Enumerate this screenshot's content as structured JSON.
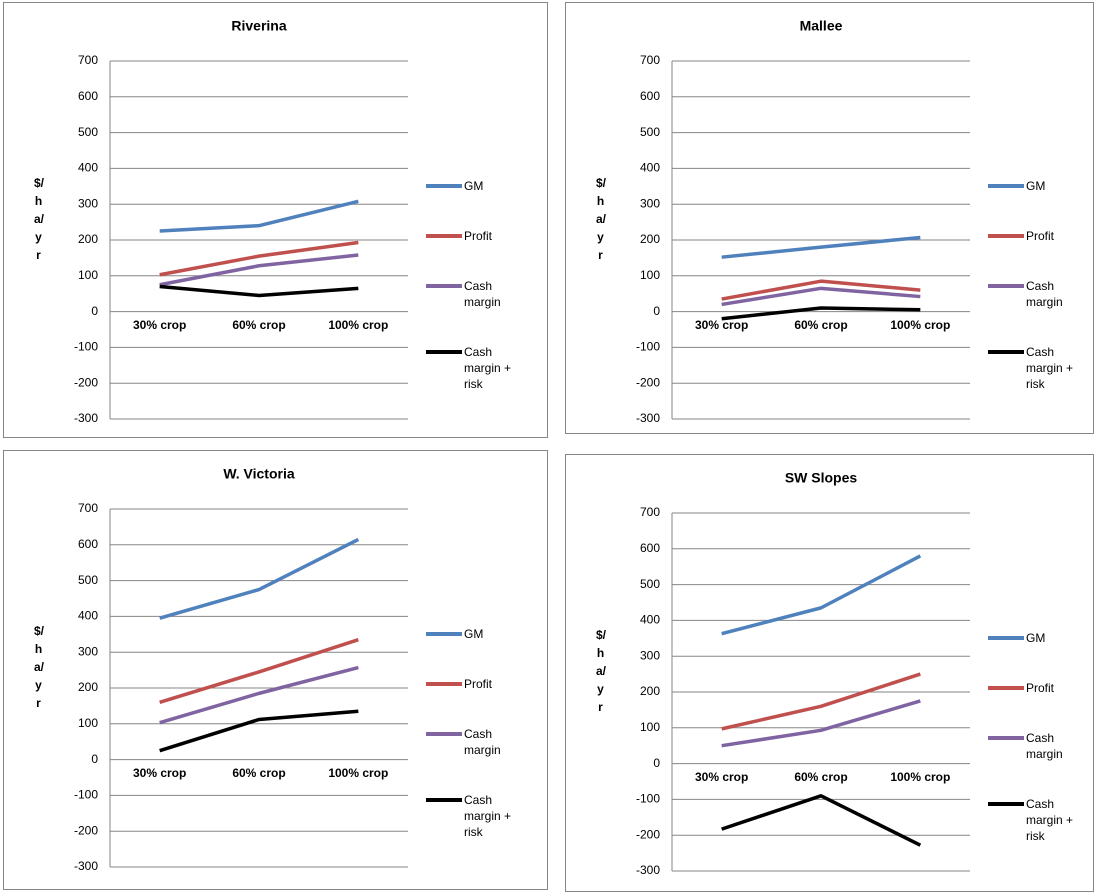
{
  "chart_data": [
    {
      "type": "line",
      "title": "Riverina",
      "ylabel": "$/ha/yr",
      "categories": [
        "30% crop",
        "60% crop",
        "100% crop"
      ],
      "ylim": [
        -300,
        700
      ],
      "yticks": [
        -300,
        -200,
        -100,
        0,
        100,
        200,
        300,
        400,
        500,
        600,
        700
      ],
      "grid": true,
      "legend": "right",
      "series": [
        {
          "name": "GM",
          "color": "#4f81bd",
          "values": [
            225,
            240,
            308
          ]
        },
        {
          "name": "Profit",
          "color": "#c0504d",
          "values": [
            103,
            155,
            193
          ]
        },
        {
          "name": "Cash margin",
          "color": "#8064a2",
          "values": [
            75,
            128,
            158
          ]
        },
        {
          "name": "Cash margin + risk",
          "color": "#000000",
          "values": [
            70,
            45,
            65
          ]
        }
      ]
    },
    {
      "type": "line",
      "title": "Mallee",
      "ylabel": "$/ha/yr",
      "categories": [
        "30% crop",
        "60% crop",
        "100% crop"
      ],
      "ylim": [
        -300,
        700
      ],
      "yticks": [
        -300,
        -200,
        -100,
        0,
        100,
        200,
        300,
        400,
        500,
        600,
        700
      ],
      "grid": true,
      "legend": "right",
      "series": [
        {
          "name": "GM",
          "color": "#4f81bd",
          "values": [
            152,
            180,
            207
          ]
        },
        {
          "name": "Profit",
          "color": "#c0504d",
          "values": [
            35,
            85,
            60
          ]
        },
        {
          "name": "Cash margin",
          "color": "#8064a2",
          "values": [
            20,
            65,
            42
          ]
        },
        {
          "name": "Cash margin + risk",
          "color": "#000000",
          "values": [
            -20,
            10,
            5
          ]
        }
      ]
    },
    {
      "type": "line",
      "title": "W. Victoria",
      "ylabel": "$/ha/yr",
      "categories": [
        "30% crop",
        "60% crop",
        "100% crop"
      ],
      "ylim": [
        -300,
        700
      ],
      "yticks": [
        -300,
        -200,
        -100,
        0,
        100,
        200,
        300,
        400,
        500,
        600,
        700
      ],
      "grid": true,
      "legend": "right",
      "series": [
        {
          "name": "GM",
          "color": "#4f81bd",
          "values": [
            395,
            475,
            615
          ]
        },
        {
          "name": "Profit",
          "color": "#c0504d",
          "values": [
            160,
            245,
            335
          ]
        },
        {
          "name": "Cash margin",
          "color": "#8064a2",
          "values": [
            103,
            185,
            257
          ]
        },
        {
          "name": "Cash margin + risk",
          "color": "#000000",
          "values": [
            25,
            112,
            135
          ]
        }
      ]
    },
    {
      "type": "line",
      "title": "SW Slopes",
      "ylabel": "$/ha/yr",
      "categories": [
        "30% crop",
        "60% crop",
        "100% crop"
      ],
      "ylim": [
        -300,
        700
      ],
      "yticks": [
        -300,
        -200,
        -100,
        0,
        100,
        200,
        300,
        400,
        500,
        600,
        700
      ],
      "grid": true,
      "legend": "right",
      "series": [
        {
          "name": "GM",
          "color": "#4f81bd",
          "values": [
            363,
            435,
            580
          ]
        },
        {
          "name": "Profit",
          "color": "#c0504d",
          "values": [
            97,
            160,
            250
          ]
        },
        {
          "name": "Cash margin",
          "color": "#8064a2",
          "values": [
            50,
            93,
            175
          ]
        },
        {
          "name": "Cash margin + risk",
          "color": "#000000",
          "values": [
            -183,
            -90,
            -228
          ]
        }
      ]
    }
  ]
}
